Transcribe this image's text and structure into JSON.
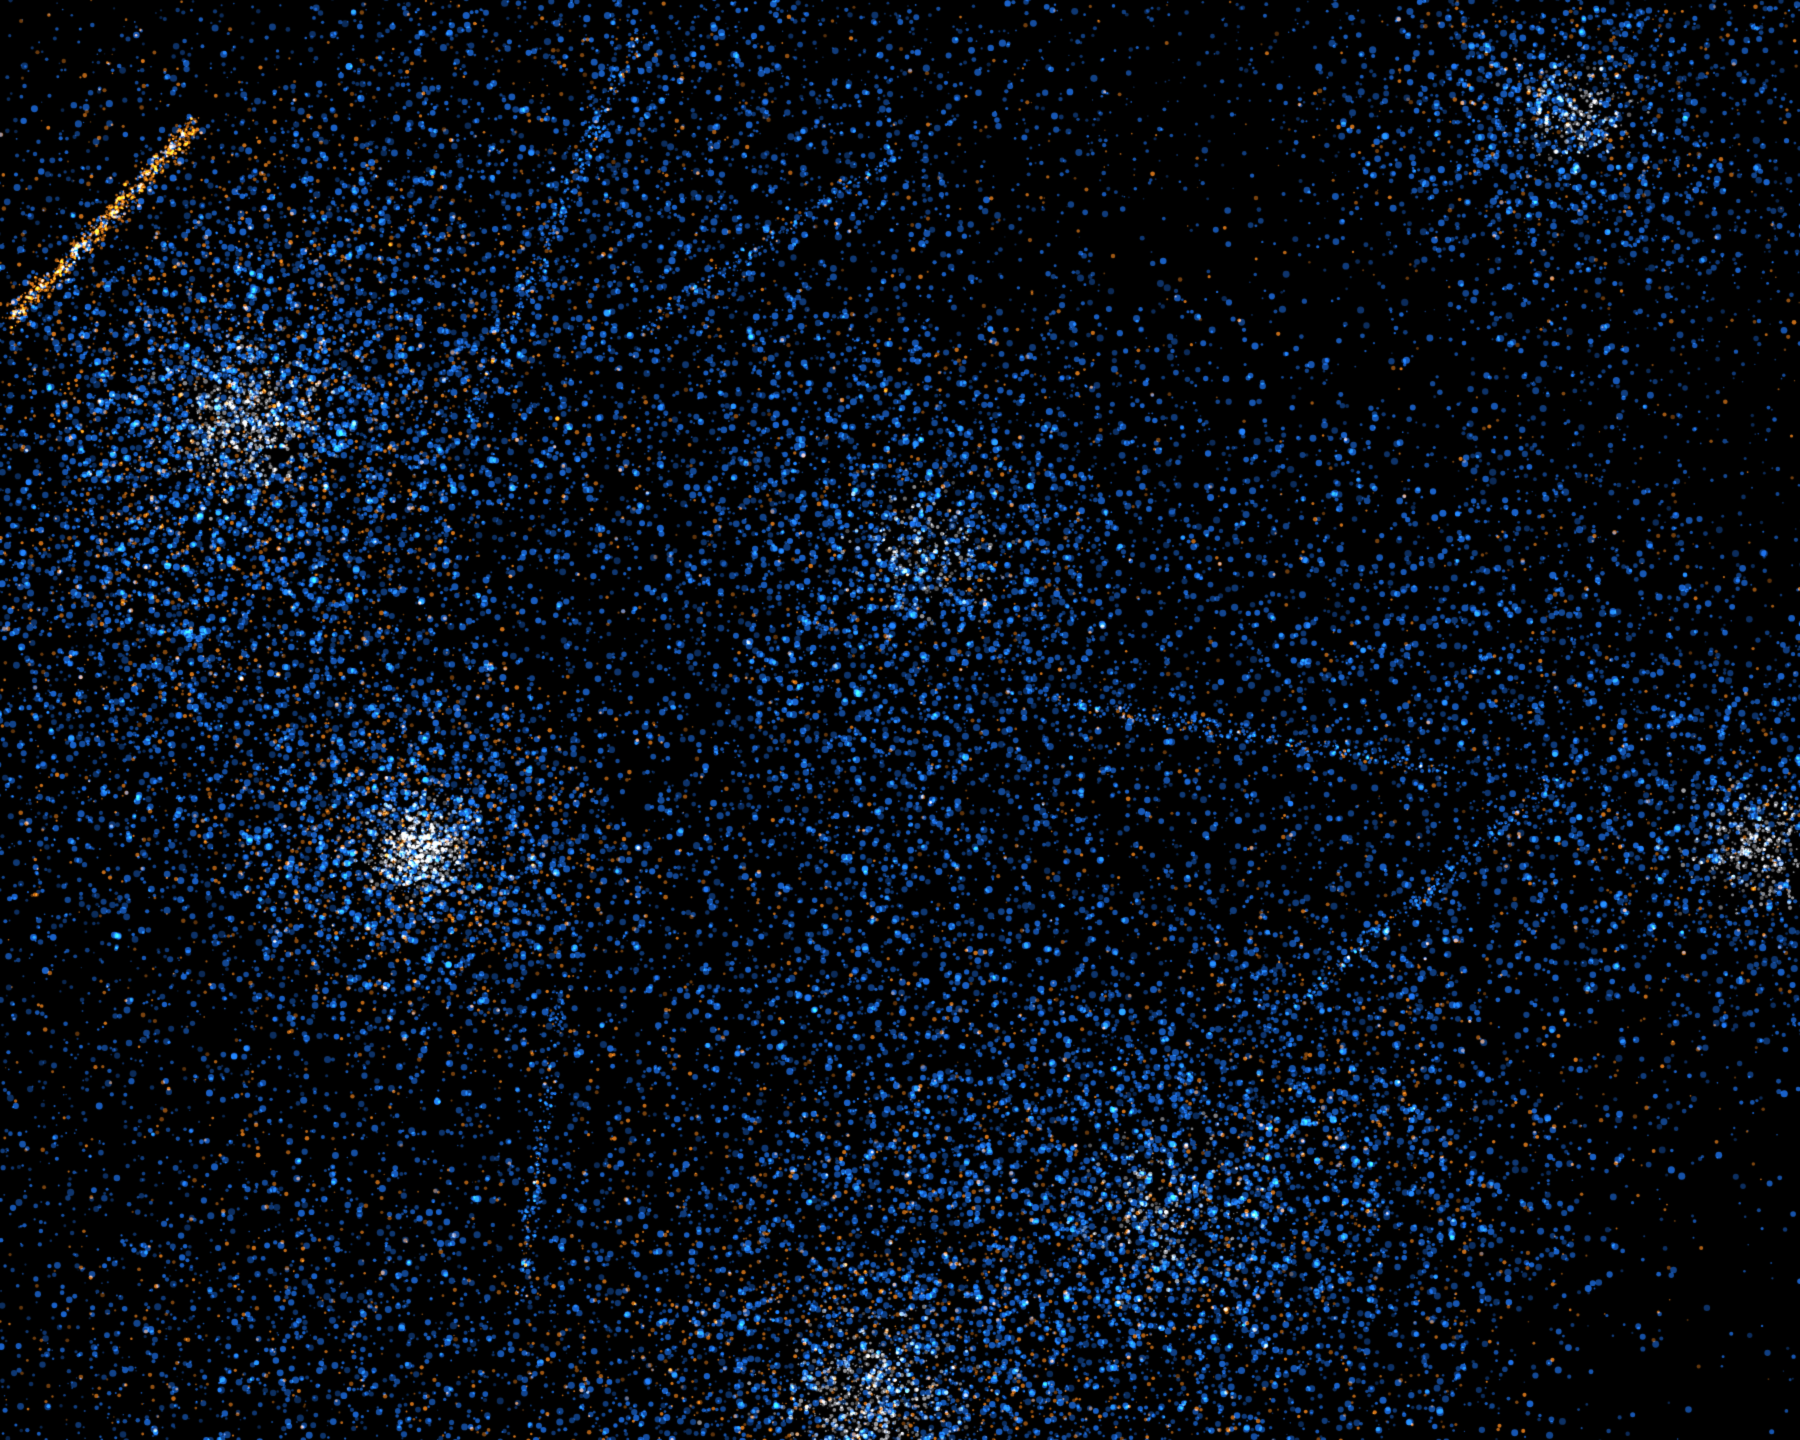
{
  "map": {
    "background_color": "#000000",
    "colors": {
      "primary_points": "#1e74f0",
      "secondary_points": "#ff8c1e",
      "overlap_points": "#f4f6ff"
    }
  }
}
